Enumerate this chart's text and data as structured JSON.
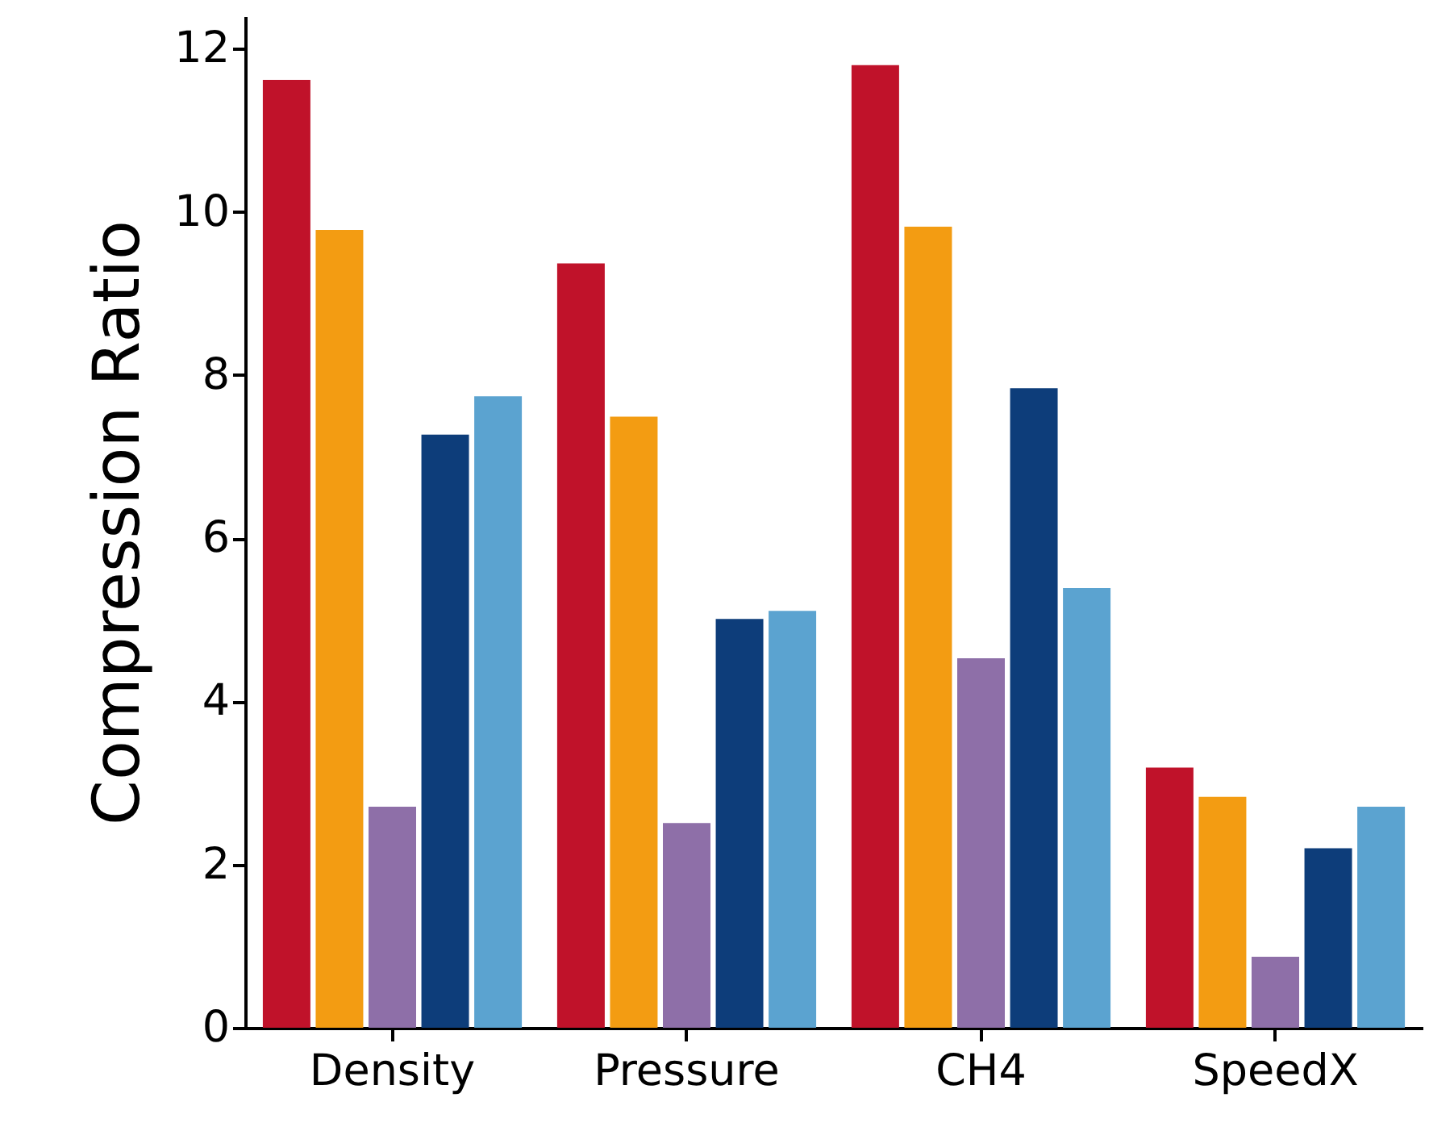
{
  "chart_data": {
    "type": "bar",
    "ylabel": "Compression Ratio",
    "categories": [
      "Density",
      "Pressure",
      "CH4",
      "SpeedX"
    ],
    "ylim": [
      0,
      12.4
    ],
    "yticks": [
      0,
      2,
      4,
      6,
      8,
      10,
      12
    ],
    "grid": false,
    "series": [
      {
        "color": "#c0122a",
        "values": [
          11.62,
          9.37,
          11.8,
          3.19
        ]
      },
      {
        "color": "#f39c12",
        "values": [
          9.78,
          7.49,
          9.82,
          2.83
        ]
      },
      {
        "color": "#8e6fa8",
        "values": [
          2.71,
          2.51,
          4.53,
          0.87
        ]
      },
      {
        "color": "#0d3d7a",
        "values": [
          7.27,
          5.01,
          7.84,
          2.2
        ]
      },
      {
        "color": "#5ba3d0",
        "values": [
          7.74,
          5.11,
          5.39,
          2.71
        ]
      }
    ]
  }
}
